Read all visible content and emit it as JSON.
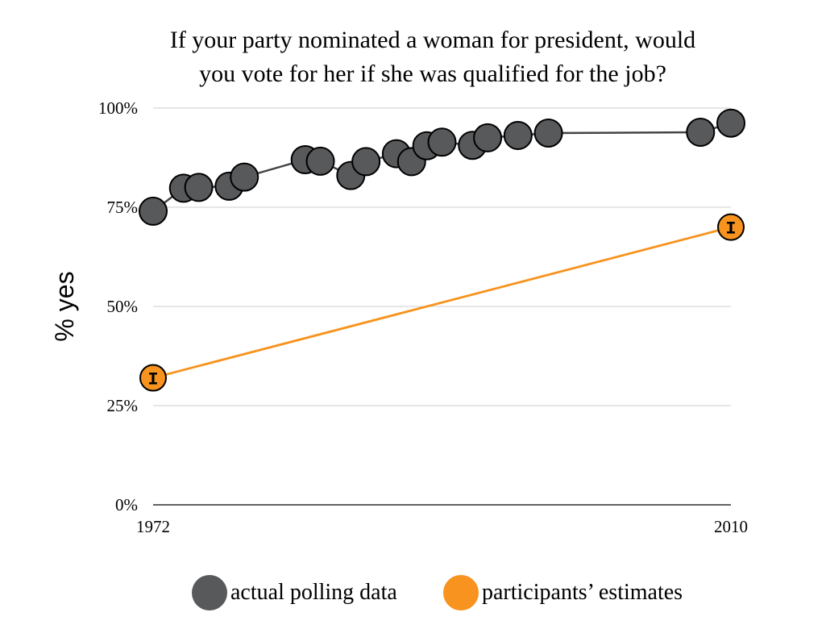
{
  "chart_data": {
    "type": "line",
    "title_lines": [
      "If your party nominated a woman for president, would",
      "you vote for her if she was qualified for the job?"
    ],
    "ylabel": "% yes",
    "ylim": [
      0,
      100
    ],
    "yticks": [
      0,
      25,
      50,
      75,
      100
    ],
    "ytick_labels": [
      "0%",
      "25%",
      "50%",
      "75%",
      "100%"
    ],
    "xlim": [
      1972,
      2010
    ],
    "xtick_labels": [
      "1972",
      "2010"
    ],
    "grid": true,
    "legend_position": "bottom",
    "series": [
      {
        "name": "actual polling data",
        "color": "#58595b",
        "line_color": "#444444",
        "x": [
          1972,
          1974,
          1975,
          1977,
          1978,
          1982,
          1983,
          1985,
          1986,
          1988,
          1989,
          1990,
          1991,
          1993,
          1994,
          1996,
          1998,
          2008,
          2010
        ],
        "y": [
          74,
          79.8,
          80,
          80.3,
          82.6,
          87,
          86.6,
          83,
          86.5,
          88.5,
          86.5,
          90.5,
          91.4,
          90.6,
          92.5,
          93.1,
          93.7,
          93.9,
          96.2
        ]
      },
      {
        "name": "participants' estimates",
        "color": "#f7931e",
        "line_color": "#f7931e",
        "error_marker": "I",
        "x": [
          1972,
          2010
        ],
        "y": [
          32,
          70
        ]
      }
    ],
    "legend": [
      {
        "label": "actual polling data",
        "color": "#58595b"
      },
      {
        "label": "participants’ estimates",
        "color": "#f7931e"
      }
    ]
  }
}
